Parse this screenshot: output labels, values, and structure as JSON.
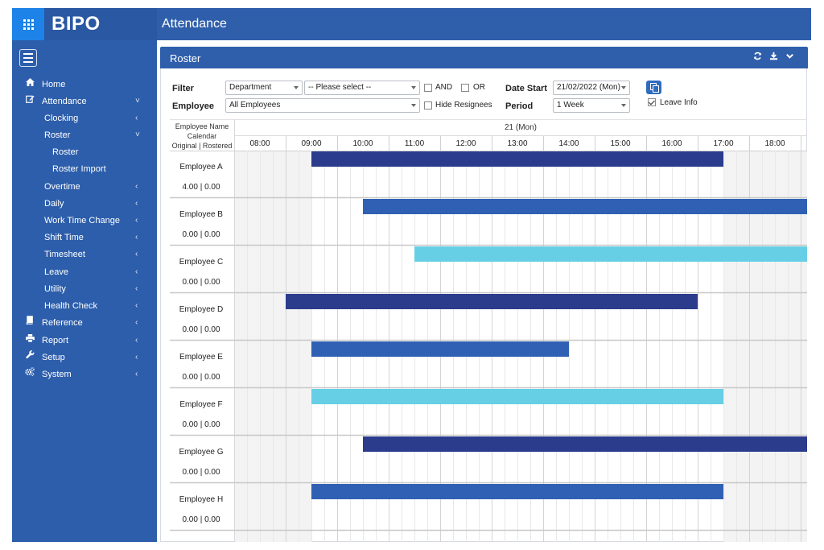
{
  "brand": {
    "name": "BIPO",
    "apps_icon": "apps-grid-icon"
  },
  "header": {
    "title": "Attendance"
  },
  "sidebar": {
    "items": [
      {
        "label": "Home",
        "icon": "home-icon",
        "chevron": ""
      },
      {
        "label": "Attendance",
        "icon": "edit-icon",
        "chevron": "˅"
      },
      {
        "label": "Clocking",
        "icon": "",
        "chevron": "‹"
      },
      {
        "label": "Roster",
        "icon": "",
        "chevron": "˅"
      },
      {
        "label": "Roster",
        "icon": "",
        "chevron": ""
      },
      {
        "label": "Roster Import",
        "icon": "",
        "chevron": ""
      },
      {
        "label": "Overtime",
        "icon": "",
        "chevron": "‹"
      },
      {
        "label": "Daily",
        "icon": "",
        "chevron": "‹"
      },
      {
        "label": "Work Time Change",
        "icon": "",
        "chevron": "‹"
      },
      {
        "label": "Shift Time",
        "icon": "",
        "chevron": "‹"
      },
      {
        "label": "Timesheet",
        "icon": "",
        "chevron": "‹"
      },
      {
        "label": "Leave",
        "icon": "",
        "chevron": "‹"
      },
      {
        "label": "Utility",
        "icon": "",
        "chevron": "‹"
      },
      {
        "label": "Health Check",
        "icon": "",
        "chevron": "‹"
      },
      {
        "label": "Reference",
        "icon": "book-icon",
        "chevron": "‹"
      },
      {
        "label": "Report",
        "icon": "print-icon",
        "chevron": "‹"
      },
      {
        "label": "Setup",
        "icon": "wrench-icon",
        "chevron": "‹"
      },
      {
        "label": "System",
        "icon": "cogs-icon",
        "chevron": "‹"
      }
    ]
  },
  "panel": {
    "title": "Roster"
  },
  "filter": {
    "filter_label": "Filter",
    "employee_label": "Employee",
    "department_select": "Department",
    "please_select": "-- Please select --",
    "employee_select": "All Employees",
    "and_label": "AND",
    "or_label": "OR",
    "hide_resignees_label": "Hide Resignees",
    "date_start_label": "Date Start",
    "date_start_value": "21/02/2022 (Mon)",
    "period_label": "Period",
    "period_value": "1 Week",
    "leave_info_label": "Leave Info",
    "and_checked": false,
    "or_checked": false,
    "hide_resignees_checked": false,
    "leave_info_checked": true
  },
  "grid": {
    "header_line1": "Employee Name",
    "header_line2": "Calendar",
    "header_line3": "Original | Rostered",
    "day_label": "21 (Mon)",
    "hours": [
      "08:00",
      "09:00",
      "10:00",
      "11:00",
      "12:00",
      "13:00",
      "14:00",
      "15:00",
      "16:00",
      "17:00",
      "18:00"
    ]
  },
  "colors": {
    "dark": "#2b3c8d",
    "medium": "#3060b4",
    "light": "#66cfe5"
  },
  "employees": [
    {
      "name": "Employee A",
      "hours": "4.00 | 0.00",
      "shift_start": "09:00",
      "shift_end": "17:00",
      "color": "dark"
    },
    {
      "name": "Employee B",
      "hours": "0.00 | 0.00",
      "shift_start": "10:00",
      "shift_end": "",
      "color": "medium"
    },
    {
      "name": "Employee C",
      "hours": "0.00 | 0.00",
      "shift_start": "11:00",
      "shift_end": "",
      "color": "light"
    },
    {
      "name": "Employee D",
      "hours": "0.00 | 0.00",
      "shift_start": "08:30",
      "shift_end": "16:30",
      "color": "dark"
    },
    {
      "name": "Employee E",
      "hours": "0.00 | 0.00",
      "shift_start": "09:00",
      "shift_end": "14:00",
      "color": "medium"
    },
    {
      "name": "Employee F",
      "hours": "0.00 | 0.00",
      "shift_start": "09:00",
      "shift_end": "17:00",
      "color": "light"
    },
    {
      "name": "Employee G",
      "hours": "0.00 | 0.00",
      "shift_start": "10:00",
      "shift_end": "",
      "color": "dark"
    },
    {
      "name": "Employee H",
      "hours": "0.00 | 0.00",
      "shift_start": "09:00",
      "shift_end": "17:00",
      "color": "medium"
    }
  ]
}
